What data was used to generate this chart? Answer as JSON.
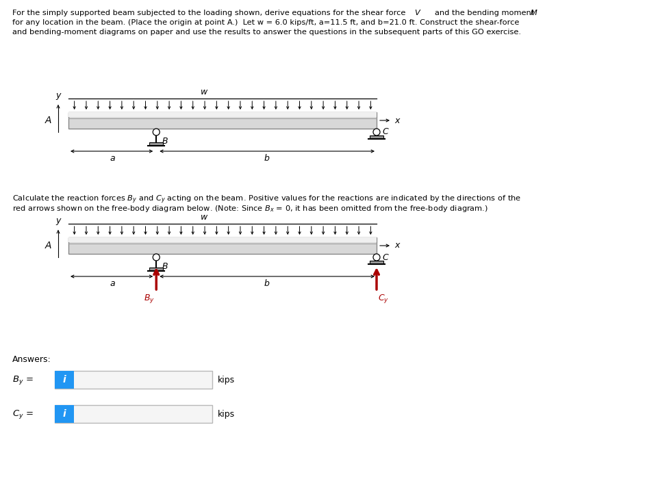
{
  "background_color": "#ffffff",
  "arrow_color": "#aa0000",
  "icon_bg": "#2196F3",
  "beam_face": "#d8d8d8",
  "beam_edge": "#888888",
  "beam_light": "#ececec",
  "support_face": "#aaaaaa",
  "desc_line1": "For the simply supported beam subjected to the loading shown, derive equations for the shear force ",
  "desc_line1b": "V",
  "desc_line1c": " and the bending moment ",
  "desc_line1d": "M",
  "desc_line2": "for any location in the beam. (Place the origin at point A.)  Let w = 6.0 kips/ft, a=11.5 ft, and b=21.0 ft. Construct the shear-force",
  "desc_line3": "and bending-moment diagrams on paper and use the results to answer the questions in the subsequent parts of this GO exercise.",
  "calc_line1": "Calculate the reaction forces B",
  "calc_line1b": "y",
  "calc_line1c": " and C",
  "calc_line1d": "y",
  "calc_line1e": " acting on the beam. Positive values for the reactions are indicated by the directions of the",
  "calc_line2": "red arrows shown on the free-body diagram below. (Note: Since B",
  "calc_line2b": "x",
  "calc_line2c": " = 0, it has been omitted from the free-body diagram.)"
}
